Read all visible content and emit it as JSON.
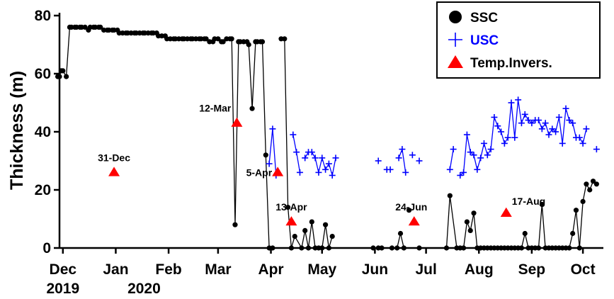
{
  "chart_data": {
    "type": "scatter",
    "xlabel": "",
    "ylabel": "Thickness (m)",
    "ylim": [
      0,
      80
    ],
    "yticks": [
      0,
      20,
      40,
      60,
      80
    ],
    "xlim": [
      "2019-11-29",
      "2020-10-13"
    ],
    "xticks": [
      {
        "date": "2019-12-01",
        "label": "Dec",
        "sublabel": "2019"
      },
      {
        "date": "2020-01-01",
        "label": "Jan",
        "sublabel": "2020"
      },
      {
        "date": "2020-02-01",
        "label": "Feb",
        "sublabel": ""
      },
      {
        "date": "2020-03-01",
        "label": "Mar",
        "sublabel": ""
      },
      {
        "date": "2020-04-01",
        "label": "Apr",
        "sublabel": ""
      },
      {
        "date": "2020-05-01",
        "label": "May",
        "sublabel": ""
      },
      {
        "date": "2020-06-01",
        "label": "Jun",
        "sublabel": ""
      },
      {
        "date": "2020-07-01",
        "label": "Jul",
        "sublabel": ""
      },
      {
        "date": "2020-08-01",
        "label": "Aug",
        "sublabel": ""
      },
      {
        "date": "2020-09-01",
        "label": "Sep",
        "sublabel": ""
      },
      {
        "date": "2020-10-01",
        "label": "Oct",
        "sublabel": ""
      }
    ],
    "grid": false,
    "legend": "top-right",
    "series": [
      {
        "name": "SSC",
        "marker": "circle",
        "color": "#000000",
        "segments": [
          [
            [
              "2019-11-28",
              59
            ],
            [
              "2019-11-29",
              59
            ],
            [
              "2019-11-30",
              61
            ],
            [
              "2019-12-01",
              61
            ],
            [
              "2019-12-03",
              59
            ],
            [
              "2019-12-05",
              76
            ],
            [
              "2019-12-06",
              76
            ],
            [
              "2019-12-08",
              76
            ],
            [
              "2019-12-09",
              76
            ],
            [
              "2019-12-11",
              76
            ],
            [
              "2019-12-12",
              76
            ],
            [
              "2019-12-14",
              76
            ],
            [
              "2019-12-16",
              75
            ],
            [
              "2019-12-17",
              76
            ],
            [
              "2019-12-19",
              76
            ],
            [
              "2019-12-20",
              76
            ],
            [
              "2019-12-22",
              76
            ],
            [
              "2019-12-23",
              76
            ],
            [
              "2019-12-25",
              75
            ],
            [
              "2019-12-27",
              75
            ],
            [
              "2019-12-28",
              75
            ],
            [
              "2019-12-30",
              75
            ],
            [
              "2019-12-31",
              75
            ],
            [
              "2020-01-02",
              75
            ],
            [
              "2020-01-03",
              74
            ],
            [
              "2020-01-05",
              74
            ],
            [
              "2020-01-07",
              74
            ],
            [
              "2020-01-08",
              74
            ],
            [
              "2020-01-10",
              74
            ],
            [
              "2020-01-12",
              74
            ],
            [
              "2020-01-13",
              74
            ],
            [
              "2020-01-15",
              74
            ],
            [
              "2020-01-17",
              74
            ],
            [
              "2020-01-18",
              74
            ],
            [
              "2020-01-20",
              74
            ],
            [
              "2020-01-22",
              74
            ],
            [
              "2020-01-23",
              74
            ],
            [
              "2020-01-25",
              74
            ],
            [
              "2020-01-26",
              73
            ],
            [
              "2020-01-28",
              73
            ],
            [
              "2020-01-30",
              73
            ],
            [
              "2020-01-31",
              72
            ],
            [
              "2020-02-02",
              72
            ],
            [
              "2020-02-04",
              72
            ],
            [
              "2020-02-05",
              72
            ],
            [
              "2020-02-07",
              72
            ],
            [
              "2020-02-09",
              72
            ],
            [
              "2020-02-10",
              72
            ],
            [
              "2020-02-12",
              72
            ],
            [
              "2020-02-14",
              72
            ],
            [
              "2020-02-15",
              72
            ],
            [
              "2020-02-17",
              72
            ],
            [
              "2020-02-19",
              72
            ],
            [
              "2020-02-20",
              72
            ],
            [
              "2020-02-22",
              72
            ],
            [
              "2020-02-23",
              72
            ],
            [
              "2020-02-25",
              71
            ],
            [
              "2020-02-27",
              71
            ],
            [
              "2020-02-28",
              72
            ],
            [
              "2020-03-01",
              72
            ],
            [
              "2020-03-03",
              71
            ],
            [
              "2020-03-04",
              71
            ],
            [
              "2020-03-06",
              72
            ],
            [
              "2020-03-08",
              72
            ],
            [
              "2020-03-09",
              72
            ],
            [
              "2020-03-11",
              8
            ],
            [
              "2020-03-13",
              71
            ],
            [
              "2020-03-14",
              71
            ],
            [
              "2020-03-16",
              71
            ],
            [
              "2020-03-18",
              71
            ],
            [
              "2020-03-19",
              70
            ],
            [
              "2020-03-21",
              48
            ],
            [
              "2020-03-23",
              71
            ],
            [
              "2020-03-24",
              71
            ],
            [
              "2020-03-26",
              71
            ],
            [
              "2020-03-27",
              71
            ],
            [
              "2020-03-29",
              32
            ],
            [
              "2020-03-31",
              0
            ],
            [
              "2020-04-02",
              0
            ]
          ],
          [
            [
              "2020-04-07",
              72
            ],
            [
              "2020-04-09",
              72
            ],
            [
              "2020-04-11",
              14
            ],
            [
              "2020-04-13",
              0
            ],
            [
              "2020-04-15",
              4
            ],
            [
              "2020-04-19",
              0
            ],
            [
              "2020-04-21",
              6
            ],
            [
              "2020-04-23",
              0
            ],
            [
              "2020-04-25",
              9
            ],
            [
              "2020-04-27",
              0
            ],
            [
              "2020-04-29",
              0
            ],
            [
              "2020-05-01",
              0
            ],
            [
              "2020-05-03",
              8
            ],
            [
              "2020-05-05",
              0
            ],
            [
              "2020-05-07",
              4
            ]
          ],
          [
            [
              "2020-05-31",
              0
            ]
          ],
          [
            [
              "2020-06-03",
              0
            ],
            [
              "2020-06-05",
              0
            ]
          ],
          [
            [
              "2020-06-11",
              0
            ],
            [
              "2020-06-14",
              0
            ],
            [
              "2020-06-16",
              5
            ],
            [
              "2020-06-18",
              0
            ]
          ],
          [
            [
              "2020-06-21",
              13
            ]
          ],
          [
            [
              "2020-06-27",
              0
            ]
          ],
          [
            [
              "2020-07-13",
              0
            ],
            [
              "2020-07-15",
              18
            ],
            [
              "2020-07-19",
              0
            ],
            [
              "2020-07-21",
              0
            ],
            [
              "2020-07-23",
              0
            ],
            [
              "2020-07-25",
              9
            ],
            [
              "2020-07-27",
              6
            ],
            [
              "2020-07-29",
              12
            ],
            [
              "2020-07-31",
              0
            ],
            [
              "2020-08-02",
              0
            ],
            [
              "2020-08-04",
              0
            ],
            [
              "2020-08-06",
              0
            ],
            [
              "2020-08-08",
              0
            ],
            [
              "2020-08-10",
              0
            ],
            [
              "2020-08-12",
              0
            ],
            [
              "2020-08-14",
              0
            ],
            [
              "2020-08-16",
              0
            ],
            [
              "2020-08-18",
              0
            ],
            [
              "2020-08-20",
              0
            ],
            [
              "2020-08-22",
              0
            ],
            [
              "2020-08-24",
              0
            ],
            [
              "2020-08-26",
              0
            ],
            [
              "2020-08-28",
              5
            ],
            [
              "2020-08-30",
              0
            ],
            [
              "2020-09-01",
              0
            ],
            [
              "2020-09-03",
              0
            ],
            [
              "2020-09-05",
              0
            ],
            [
              "2020-09-07",
              15
            ],
            [
              "2020-09-09",
              0
            ],
            [
              "2020-09-11",
              0
            ],
            [
              "2020-09-13",
              0
            ],
            [
              "2020-09-15",
              0
            ],
            [
              "2020-09-17",
              0
            ],
            [
              "2020-09-19",
              0
            ],
            [
              "2020-09-21",
              0
            ],
            [
              "2020-09-23",
              0
            ],
            [
              "2020-09-25",
              5
            ],
            [
              "2020-09-27",
              13
            ],
            [
              "2020-09-29",
              0
            ],
            [
              "2020-10-01",
              16
            ],
            [
              "2020-10-03",
              22
            ],
            [
              "2020-10-05",
              20
            ],
            [
              "2020-10-07",
              23
            ],
            [
              "2020-10-09",
              22
            ]
          ]
        ]
      },
      {
        "name": "USC",
        "marker": "plus",
        "color": "#0000ff",
        "segments": [
          [
            [
              "2020-03-31",
              29
            ],
            [
              "2020-04-02",
              41
            ],
            [
              "2020-04-04",
              25
            ]
          ],
          [
            [
              "2020-04-14",
              39
            ],
            [
              "2020-04-16",
              33
            ],
            [
              "2020-04-18",
              26
            ]
          ],
          [
            [
              "2020-04-21",
              31
            ],
            [
              "2020-04-23",
              33
            ],
            [
              "2020-04-25",
              33
            ],
            [
              "2020-04-27",
              31
            ],
            [
              "2020-04-29",
              26
            ],
            [
              "2020-05-01",
              31
            ],
            [
              "2020-05-03",
              27
            ],
            [
              "2020-05-05",
              29
            ],
            [
              "2020-05-07",
              25
            ],
            [
              "2020-05-09",
              31
            ]
          ],
          [
            [
              "2020-06-03",
              30
            ]
          ],
          [
            [
              "2020-06-08",
              27
            ],
            [
              "2020-06-10",
              27
            ]
          ],
          [
            [
              "2020-06-15",
              31
            ],
            [
              "2020-06-17",
              34
            ],
            [
              "2020-06-19",
              26
            ]
          ],
          [
            [
              "2020-06-23",
              32
            ]
          ],
          [
            [
              "2020-06-27",
              30
            ]
          ],
          [
            [
              "2020-07-15",
              27
            ],
            [
              "2020-07-17",
              34
            ]
          ],
          [
            [
              "2020-07-21",
              25
            ],
            [
              "2020-07-23",
              26
            ],
            [
              "2020-07-25",
              39
            ],
            [
              "2020-07-27",
              33
            ],
            [
              "2020-07-29",
              32
            ],
            [
              "2020-07-31",
              27
            ],
            [
              "2020-08-02",
              31
            ],
            [
              "2020-08-04",
              36
            ],
            [
              "2020-08-06",
              32
            ],
            [
              "2020-08-08",
              34
            ],
            [
              "2020-08-10",
              45
            ],
            [
              "2020-08-12",
              42
            ],
            [
              "2020-08-14",
              40
            ],
            [
              "2020-08-16",
              36
            ],
            [
              "2020-08-18",
              38
            ],
            [
              "2020-08-20",
              50
            ],
            [
              "2020-08-22",
              38
            ],
            [
              "2020-08-24",
              51
            ],
            [
              "2020-08-26",
              43
            ],
            [
              "2020-08-28",
              46
            ],
            [
              "2020-08-30",
              44
            ],
            [
              "2020-09-01",
              43
            ],
            [
              "2020-09-03",
              44
            ],
            [
              "2020-09-05",
              44
            ],
            [
              "2020-09-07",
              41
            ],
            [
              "2020-09-09",
              43
            ],
            [
              "2020-09-11",
              39
            ],
            [
              "2020-09-13",
              41
            ],
            [
              "2020-09-15",
              40
            ],
            [
              "2020-09-17",
              45
            ],
            [
              "2020-09-19",
              36
            ],
            [
              "2020-09-21",
              48
            ],
            [
              "2020-09-23",
              44
            ],
            [
              "2020-09-25",
              43
            ],
            [
              "2020-09-27",
              38
            ],
            [
              "2020-09-29",
              38
            ],
            [
              "2020-10-01",
              36
            ],
            [
              "2020-10-03",
              41
            ]
          ],
          [
            [
              "2020-10-09",
              34
            ]
          ]
        ]
      },
      {
        "name": "Temp.Invers.",
        "marker": "triangle",
        "color": "#ff0000",
        "points": [
          {
            "x": "2019-12-31",
            "y": 26,
            "label": "31-Dec"
          },
          {
            "x": "2020-03-12",
            "y": 43,
            "label": "12-Mar"
          },
          {
            "x": "2020-04-05",
            "y": 26,
            "label": "5-Apr"
          },
          {
            "x": "2020-04-13",
            "y": 9,
            "label": "13-Apr"
          },
          {
            "x": "2020-06-24",
            "y": 9,
            "label": "24-Jun"
          },
          {
            "x": "2020-08-17",
            "y": 12,
            "label": "17-Aug"
          }
        ]
      }
    ]
  }
}
